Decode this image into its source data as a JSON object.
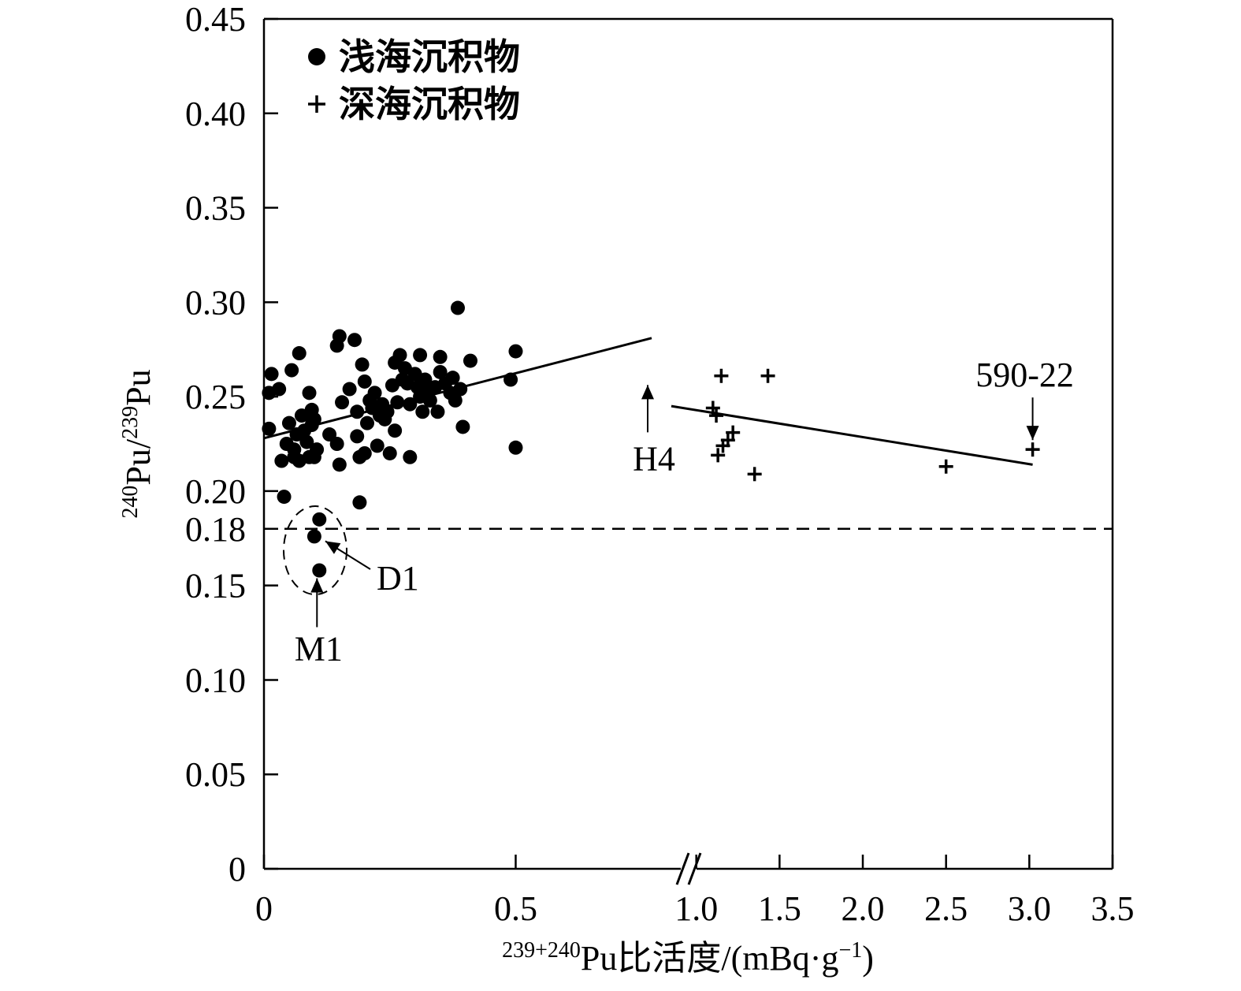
{
  "chart_data": {
    "type": "scatter",
    "title": "",
    "ylabel": {
      "sup1": "240",
      "base1": "Pu/",
      "sup2": "239",
      "base2": "Pu"
    },
    "xlabel": {
      "sup": "239+240",
      "text": "Pu比活度/(mBq·g",
      "exp": "−1",
      "close": ")"
    },
    "ylim": [
      0,
      0.45
    ],
    "y_ticks": [
      "0",
      "0.05",
      "0.10",
      "0.15",
      "0.18",
      "0.20",
      "0.25",
      "0.30",
      "0.35",
      "0.40",
      "0.45"
    ],
    "y_tick_values": [
      0,
      0.05,
      0.1,
      0.15,
      0.18,
      0.2,
      0.25,
      0.3,
      0.35,
      0.4,
      0.45
    ],
    "x_broken_axis": true,
    "x_segment_left": {
      "range": [
        0,
        0.77
      ],
      "ticks": [
        "0",
        "0.5"
      ],
      "tick_values": [
        0,
        0.5
      ]
    },
    "x_segment_right": {
      "range": [
        0.85,
        3.5
      ],
      "ticks": [
        "1.0",
        "1.5",
        "2.0",
        "2.5",
        "3.0",
        "3.5"
      ],
      "tick_values": [
        1.0,
        1.5,
        2.0,
        2.5,
        3.0,
        3.5
      ]
    },
    "legend_position": "top-left",
    "reference_line_y": 0.18,
    "series": [
      {
        "name": "浅海沉积物",
        "marker": "circle",
        "points": [
          [
            0.01,
            0.252
          ],
          [
            0.01,
            0.233
          ],
          [
            0.015,
            0.262
          ],
          [
            0.03,
            0.254
          ],
          [
            0.035,
            0.216
          ],
          [
            0.04,
            0.197
          ],
          [
            0.045,
            0.225
          ],
          [
            0.05,
            0.236
          ],
          [
            0.055,
            0.264
          ],
          [
            0.06,
            0.218
          ],
          [
            0.06,
            0.222
          ],
          [
            0.065,
            0.23
          ],
          [
            0.07,
            0.273
          ],
          [
            0.07,
            0.216
          ],
          [
            0.075,
            0.24
          ],
          [
            0.08,
            0.232
          ],
          [
            0.085,
            0.226
          ],
          [
            0.09,
            0.218
          ],
          [
            0.09,
            0.252
          ],
          [
            0.095,
            0.243
          ],
          [
            0.095,
            0.235
          ],
          [
            0.1,
            0.218
          ],
          [
            0.1,
            0.238
          ],
          [
            0.105,
            0.222
          ],
          [
            0.11,
            0.185
          ],
          [
            0.1,
            0.176
          ],
          [
            0.11,
            0.158
          ],
          [
            0.13,
            0.23
          ],
          [
            0.145,
            0.225
          ],
          [
            0.145,
            0.277
          ],
          [
            0.15,
            0.282
          ],
          [
            0.15,
            0.214
          ],
          [
            0.155,
            0.247
          ],
          [
            0.17,
            0.254
          ],
          [
            0.18,
            0.28
          ],
          [
            0.185,
            0.242
          ],
          [
            0.185,
            0.229
          ],
          [
            0.19,
            0.194
          ],
          [
            0.19,
            0.218
          ],
          [
            0.195,
            0.267
          ],
          [
            0.2,
            0.258
          ],
          [
            0.2,
            0.22
          ],
          [
            0.205,
            0.236
          ],
          [
            0.21,
            0.248
          ],
          [
            0.215,
            0.244
          ],
          [
            0.22,
            0.252
          ],
          [
            0.225,
            0.224
          ],
          [
            0.23,
            0.24
          ],
          [
            0.235,
            0.246
          ],
          [
            0.24,
            0.238
          ],
          [
            0.245,
            0.242
          ],
          [
            0.25,
            0.22
          ],
          [
            0.255,
            0.256
          ],
          [
            0.26,
            0.232
          ],
          [
            0.26,
            0.268
          ],
          [
            0.265,
            0.247
          ],
          [
            0.27,
            0.272
          ],
          [
            0.275,
            0.259
          ],
          [
            0.28,
            0.265
          ],
          [
            0.285,
            0.257
          ],
          [
            0.29,
            0.218
          ],
          [
            0.29,
            0.246
          ],
          [
            0.3,
            0.262
          ],
          [
            0.305,
            0.255
          ],
          [
            0.31,
            0.272
          ],
          [
            0.31,
            0.25
          ],
          [
            0.315,
            0.242
          ],
          [
            0.32,
            0.259
          ],
          [
            0.325,
            0.253
          ],
          [
            0.33,
            0.248
          ],
          [
            0.34,
            0.255
          ],
          [
            0.345,
            0.242
          ],
          [
            0.35,
            0.263
          ],
          [
            0.35,
            0.271
          ],
          [
            0.36,
            0.257
          ],
          [
            0.37,
            0.252
          ],
          [
            0.375,
            0.26
          ],
          [
            0.38,
            0.248
          ],
          [
            0.385,
            0.297
          ],
          [
            0.39,
            0.254
          ],
          [
            0.395,
            0.234
          ],
          [
            0.41,
            0.269
          ],
          [
            0.49,
            0.259
          ],
          [
            0.5,
            0.274
          ],
          [
            0.5,
            0.223
          ]
        ]
      },
      {
        "name": "深海沉积物",
        "marker": "plus",
        "points": [
          [
            1.1,
            0.244
          ],
          [
            1.12,
            0.24
          ],
          [
            1.13,
            0.219
          ],
          [
            1.15,
            0.261
          ],
          [
            1.16,
            0.224
          ],
          [
            1.19,
            0.227
          ],
          [
            1.22,
            0.231
          ],
          [
            1.35,
            0.209
          ],
          [
            1.43,
            0.261
          ],
          [
            2.5,
            0.213
          ],
          [
            3.02,
            0.222
          ]
        ]
      }
    ],
    "trend_lines": [
      {
        "segment": "left",
        "from": [
          0.0,
          0.228
        ],
        "to": [
          0.77,
          0.281
        ]
      },
      {
        "segment": "right",
        "from": [
          0.85,
          0.245
        ],
        "to": [
          3.02,
          0.214
        ]
      }
    ],
    "annotations": [
      {
        "text": "H4",
        "target": [
          0.77,
          0.262
        ],
        "segment": "left"
      },
      {
        "text": "590-22",
        "target": [
          3.02,
          0.222
        ],
        "segment": "right"
      },
      {
        "text": "D1",
        "target": [
          0.1,
          0.176
        ],
        "segment": "left"
      },
      {
        "text": "M1",
        "target": [
          0.11,
          0.158
        ],
        "segment": "left"
      }
    ]
  }
}
